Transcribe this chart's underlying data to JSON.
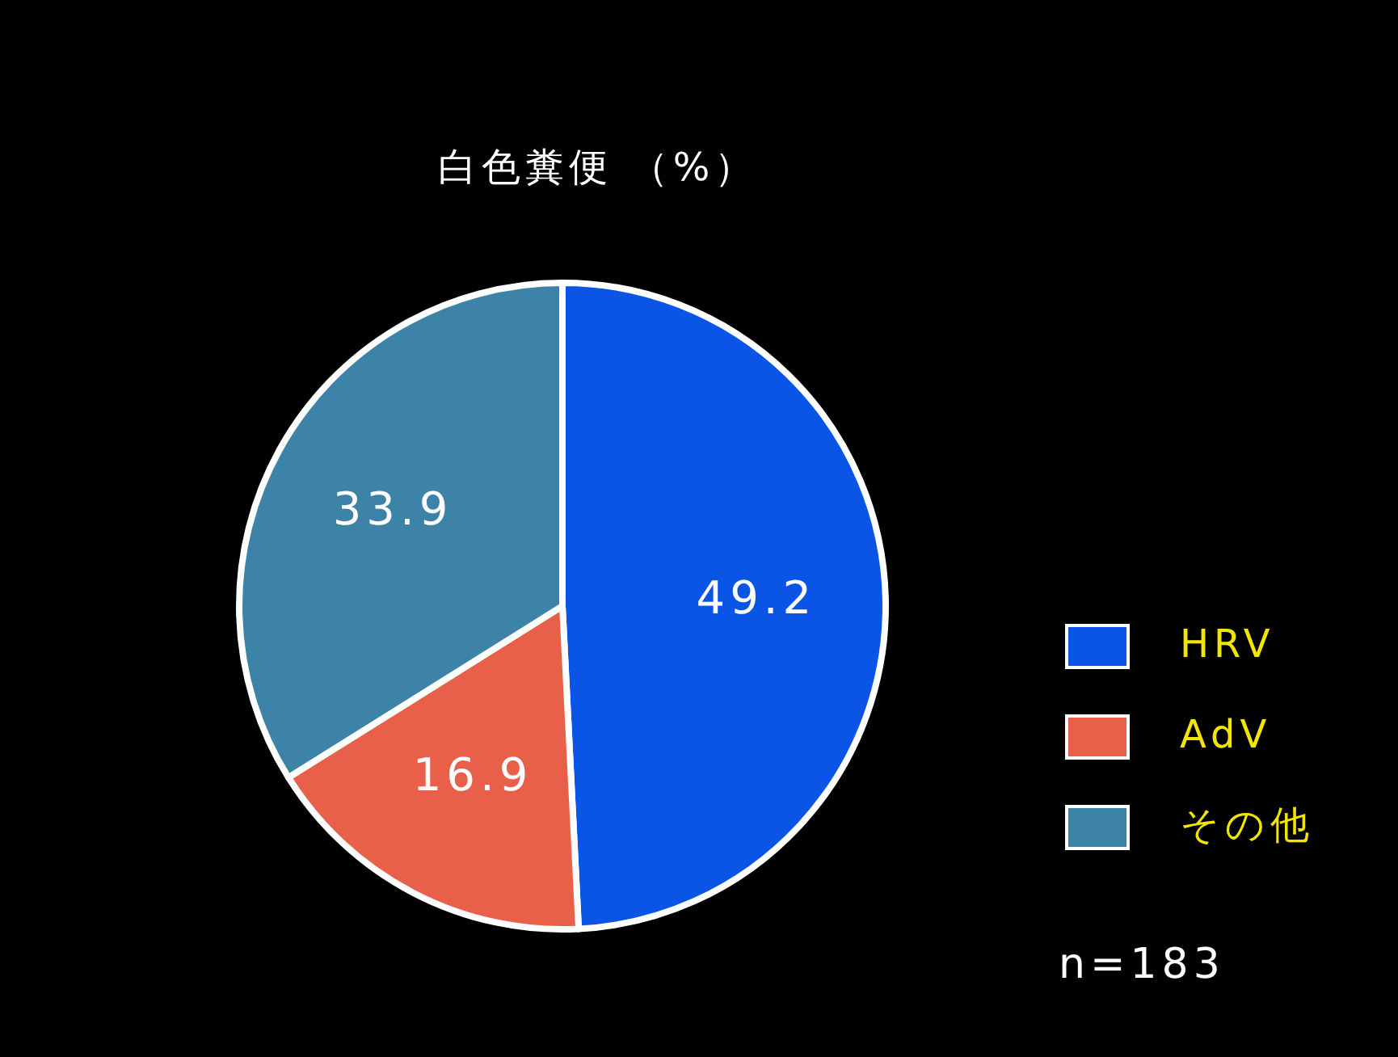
{
  "chart_data": {
    "type": "pie",
    "title": "白色糞便 （%）",
    "categories": [
      "HRV",
      "AdV",
      "その他"
    ],
    "values": [
      49.2,
      16.9,
      33.9
    ],
    "colors": [
      "#0a55e6",
      "#e8604a",
      "#3d83a8"
    ],
    "data_labels": true,
    "legend": "right",
    "annotations": [
      "n=183"
    ]
  }
}
